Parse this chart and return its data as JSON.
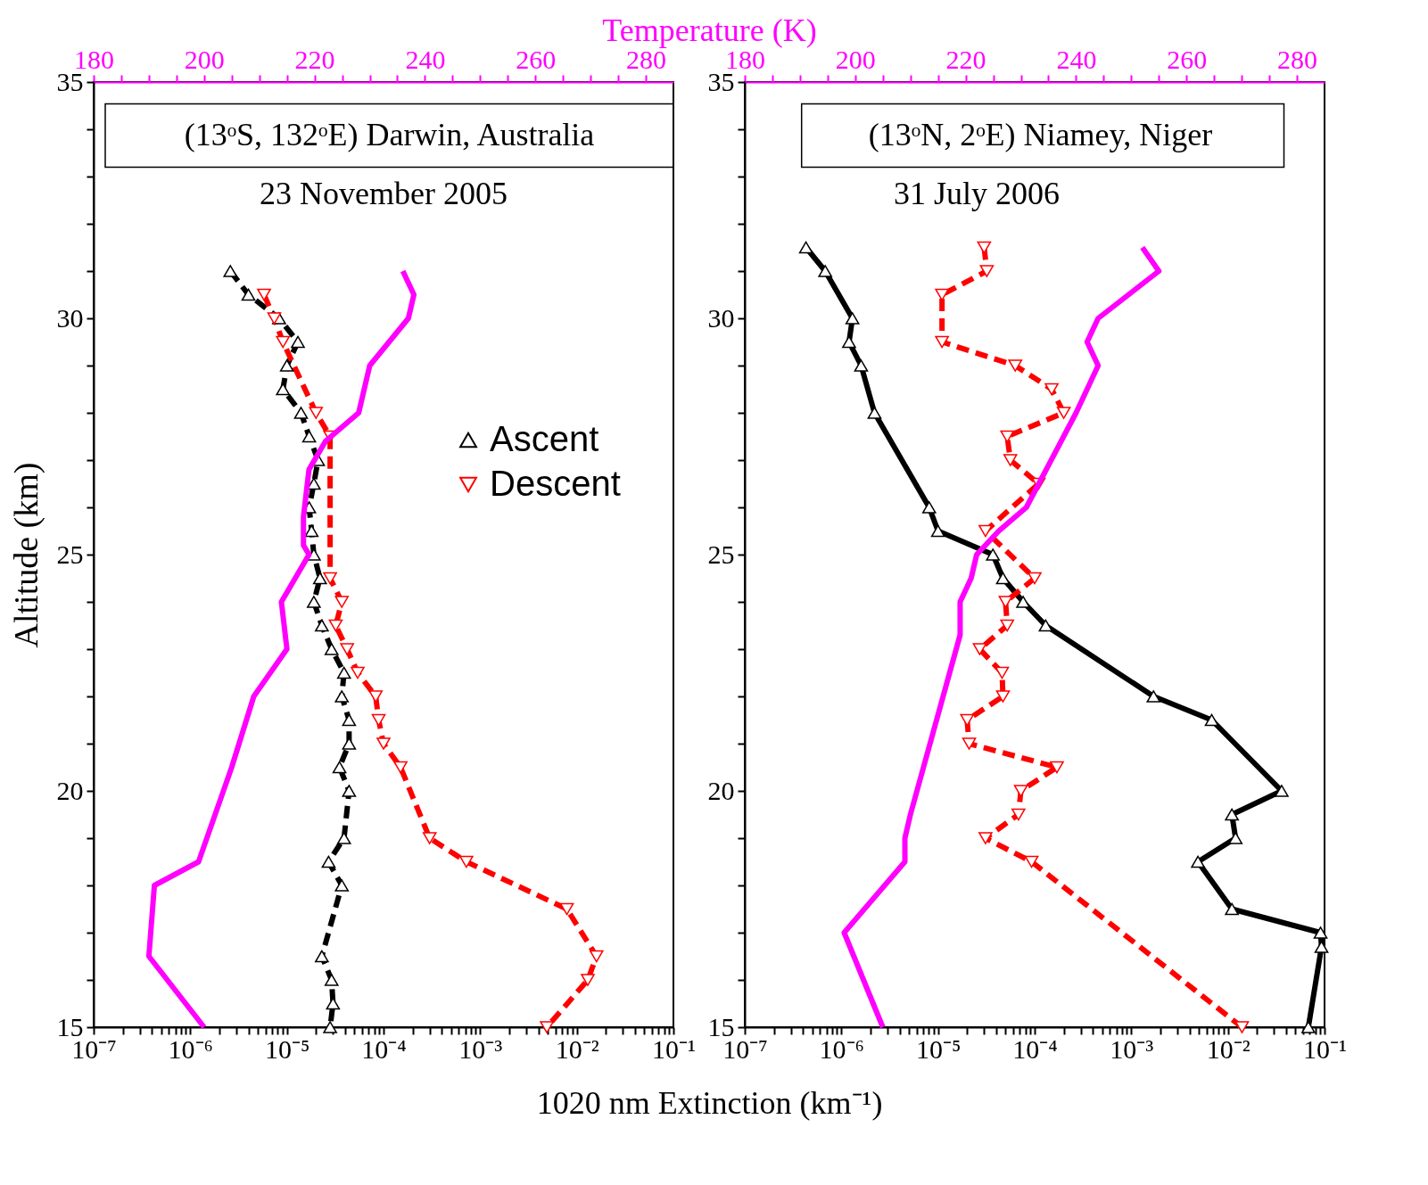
{
  "chart_data": [
    {
      "type": "line",
      "xlabel": "1020 nm Extinction (km⁻¹)",
      "x2label": "Temperature (K)",
      "ylabel": "Altitude (km)",
      "annotations": [
        "(13ᵒS, 132ᵒE) Darwin, Australia",
        "23 November 2005"
      ],
      "log": "x",
      "legend": "right",
      "xlim": [
        1e-07,
        0.1
      ],
      "xticks": [
        {
          "value": 1e-07,
          "label": "10⁻⁷"
        },
        {
          "value": 2e-07,
          "label": null
        },
        {
          "value": 3e-07,
          "label": null
        },
        {
          "value": 4e-07,
          "label": null
        },
        {
          "value": 5e-07,
          "label": null
        },
        {
          "value": 6e-07,
          "label": null
        },
        {
          "value": 7e-07,
          "label": null
        },
        {
          "value": 8e-07,
          "label": null
        },
        {
          "value": 9e-07,
          "label": null
        },
        {
          "value": 1e-06,
          "label": "10⁻⁶"
        },
        {
          "value": 2e-06,
          "label": null
        },
        {
          "value": 3e-06,
          "label": null
        },
        {
          "value": 4e-06,
          "label": null
        },
        {
          "value": 5e-06,
          "label": null
        },
        {
          "value": 6e-06,
          "label": null
        },
        {
          "value": 7e-06,
          "label": null
        },
        {
          "value": 8e-06,
          "label": null
        },
        {
          "value": 9e-06,
          "label": null
        },
        {
          "value": 1e-05,
          "label": "10⁻⁵"
        },
        {
          "value": 2e-05,
          "label": null
        },
        {
          "value": 3e-05,
          "label": null
        },
        {
          "value": 4e-05,
          "label": null
        },
        {
          "value": 5e-05,
          "label": null
        },
        {
          "value": 6e-05,
          "label": null
        },
        {
          "value": 7e-05,
          "label": null
        },
        {
          "value": 8e-05,
          "label": null
        },
        {
          "value": 9e-05,
          "label": null
        },
        {
          "value": 0.0001,
          "label": "10⁻⁴"
        },
        {
          "value": 0.0002,
          "label": null
        },
        {
          "value": 0.0003,
          "label": null
        },
        {
          "value": 0.0004,
          "label": null
        },
        {
          "value": 0.0005,
          "label": null
        },
        {
          "value": 0.0006,
          "label": null
        },
        {
          "value": 0.0007,
          "label": null
        },
        {
          "value": 0.0008,
          "label": null
        },
        {
          "value": 0.0009,
          "label": null
        },
        {
          "value": 0.001,
          "label": "10⁻³"
        },
        {
          "value": 0.002,
          "label": null
        },
        {
          "value": 0.003,
          "label": null
        },
        {
          "value": 0.004,
          "label": null
        },
        {
          "value": 0.005,
          "label": null
        },
        {
          "value": 0.006,
          "label": null
        },
        {
          "value": 0.007,
          "label": null
        },
        {
          "value": 0.008,
          "label": null
        },
        {
          "value": 0.009,
          "label": null
        },
        {
          "value": 0.01,
          "label": "10⁻²"
        },
        {
          "value": 0.02,
          "label": null
        },
        {
          "value": 0.03,
          "label": null
        },
        {
          "value": 0.04,
          "label": null
        },
        {
          "value": 0.05,
          "label": null
        },
        {
          "value": 0.06,
          "label": null
        },
        {
          "value": 0.07,
          "label": null
        },
        {
          "value": 0.08,
          "label": null
        },
        {
          "value": 0.09,
          "label": null
        },
        {
          "value": 0.1,
          "label": "10⁻¹"
        }
      ],
      "x2lim": [
        180,
        285
      ],
      "x2ticks": [
        180,
        {
          "value": 185,
          "label": null
        },
        {
          "value": 190,
          "label": null
        },
        {
          "value": 195,
          "label": null
        },
        200,
        {
          "value": 205,
          "label": null
        },
        {
          "value": 210,
          "label": null
        },
        {
          "value": 215,
          "label": null
        },
        220,
        {
          "value": 225,
          "label": null
        },
        {
          "value": 230,
          "label": null
        },
        {
          "value": 235,
          "label": null
        },
        240,
        {
          "value": 245,
          "label": null
        },
        {
          "value": 250,
          "label": null
        },
        {
          "value": 255,
          "label": null
        },
        260,
        {
          "value": 265,
          "label": null
        },
        {
          "value": 270,
          "label": null
        },
        {
          "value": 275,
          "label": null
        },
        280
      ],
      "ylim": [
        15,
        35
      ],
      "yticks": [
        15,
        {
          "value": 16,
          "label": null
        },
        {
          "value": 17,
          "label": null
        },
        {
          "value": 18,
          "label": null
        },
        {
          "value": 19,
          "label": null
        },
        20,
        {
          "value": 21,
          "label": null
        },
        {
          "value": 22,
          "label": null
        },
        {
          "value": 23,
          "label": null
        },
        {
          "value": 24,
          "label": null
        },
        25,
        {
          "value": 26,
          "label": null
        },
        {
          "value": 27,
          "label": null
        },
        {
          "value": 28,
          "label": null
        },
        {
          "value": 29,
          "label": null
        },
        30,
        {
          "value": 31,
          "label": null
        },
        {
          "value": 32,
          "label": null
        },
        {
          "value": 33,
          "label": null
        },
        {
          "value": 34,
          "label": null
        },
        35
      ],
      "series": [
        {
          "name": "Ascent",
          "color": "#000000",
          "marker": "triangle",
          "line_style": "dashed",
          "x": [
            2.6e-06,
            4e-06,
            8.3e-06,
            1.3e-05,
            1e-05,
            9.1e-06,
            1.4e-05,
            1.7e-05,
            2.1e-05,
            1.9e-05,
            1.7e-05,
            1.8e-05,
            1.9e-05,
            2.2e-05,
            1.9e-05,
            2.3e-05,
            2.9e-05,
            3.9e-05,
            3.7e-05,
            4.4e-05,
            4.4e-05,
            3.5e-05,
            4.4e-05,
            3.9e-05,
            2.7e-05,
            3.7e-05,
            2.3e-05,
            2.9e-05,
            3e-05,
            2.8e-05
          ],
          "values": [
            31,
            30.5,
            30,
            29.5,
            29,
            28.5,
            28,
            27.5,
            27,
            26.5,
            26,
            25.5,
            25,
            24.5,
            24,
            23.5,
            23,
            22.5,
            22,
            21.5,
            21,
            20.5,
            20,
            19,
            18.5,
            18,
            16.5,
            16,
            15.5,
            15
          ]
        },
        {
          "name": "Descent",
          "color": "#ff0000",
          "marker": "triangle-down",
          "line_style": "dashed",
          "x": [
            5.8e-06,
            7.4e-06,
            9.1e-06,
            2e-05,
            2.8e-05,
            2.8e-05,
            3.7e-05,
            3.2e-05,
            4.2e-05,
            5.4e-05,
            8.3e-05,
            8.9e-05,
            0.0001,
            0.00015,
            0.0003,
            0.00072,
            0.0079,
            0.016,
            0.013,
            0.0049
          ],
          "values": [
            30.5,
            30,
            29.5,
            28,
            27.5,
            24.5,
            24,
            23.5,
            23,
            22.5,
            22,
            21.5,
            21,
            20.5,
            19,
            18.5,
            17.5,
            16.5,
            16,
            15
          ]
        },
        {
          "color": "#ff00ff",
          "axis": "x2",
          "marker": "none",
          "line_style": "solid",
          "x": [
            236,
            238,
            237,
            230,
            228,
            222,
            219,
            218,
            218,
            219,
            214,
            215,
            209,
            205,
            199,
            191,
            190,
            200
          ],
          "values": [
            31,
            30.5,
            30,
            29,
            28,
            27.4,
            26.8,
            25.8,
            25.2,
            25,
            24,
            23,
            22,
            20.5,
            18.5,
            18,
            16.5,
            15
          ]
        }
      ]
    },
    {
      "type": "line",
      "annotations": [
        "(13ᵒN, 2ᵒE) Niamey, Niger",
        "31 July 2006"
      ],
      "log": "x",
      "legend": "right",
      "xlim": [
        1e-07,
        0.1
      ],
      "xticks": [
        {
          "value": 1e-07,
          "label": "10⁻⁷"
        },
        {
          "value": 2e-07,
          "label": null
        },
        {
          "value": 3e-07,
          "label": null
        },
        {
          "value": 4e-07,
          "label": null
        },
        {
          "value": 5e-07,
          "label": null
        },
        {
          "value": 6e-07,
          "label": null
        },
        {
          "value": 7e-07,
          "label": null
        },
        {
          "value": 8e-07,
          "label": null
        },
        {
          "value": 9e-07,
          "label": null
        },
        {
          "value": 1e-06,
          "label": "10⁻⁶"
        },
        {
          "value": 2e-06,
          "label": null
        },
        {
          "value": 3e-06,
          "label": null
        },
        {
          "value": 4e-06,
          "label": null
        },
        {
          "value": 5e-06,
          "label": null
        },
        {
          "value": 6e-06,
          "label": null
        },
        {
          "value": 7e-06,
          "label": null
        },
        {
          "value": 8e-06,
          "label": null
        },
        {
          "value": 9e-06,
          "label": null
        },
        {
          "value": 1e-05,
          "label": "10⁻⁵"
        },
        {
          "value": 2e-05,
          "label": null
        },
        {
          "value": 3e-05,
          "label": null
        },
        {
          "value": 4e-05,
          "label": null
        },
        {
          "value": 5e-05,
          "label": null
        },
        {
          "value": 6e-05,
          "label": null
        },
        {
          "value": 7e-05,
          "label": null
        },
        {
          "value": 8e-05,
          "label": null
        },
        {
          "value": 9e-05,
          "label": null
        },
        {
          "value": 0.0001,
          "label": "10⁻⁴"
        },
        {
          "value": 0.0002,
          "label": null
        },
        {
          "value": 0.0003,
          "label": null
        },
        {
          "value": 0.0004,
          "label": null
        },
        {
          "value": 0.0005,
          "label": null
        },
        {
          "value": 0.0006,
          "label": null
        },
        {
          "value": 0.0007,
          "label": null
        },
        {
          "value": 0.0008,
          "label": null
        },
        {
          "value": 0.0009,
          "label": null
        },
        {
          "value": 0.001,
          "label": "10⁻³"
        },
        {
          "value": 0.002,
          "label": null
        },
        {
          "value": 0.003,
          "label": null
        },
        {
          "value": 0.004,
          "label": null
        },
        {
          "value": 0.005,
          "label": null
        },
        {
          "value": 0.006,
          "label": null
        },
        {
          "value": 0.007,
          "label": null
        },
        {
          "value": 0.008,
          "label": null
        },
        {
          "value": 0.009,
          "label": null
        },
        {
          "value": 0.01,
          "label": "10⁻²"
        },
        {
          "value": 0.02,
          "label": null
        },
        {
          "value": 0.03,
          "label": null
        },
        {
          "value": 0.04,
          "label": null
        },
        {
          "value": 0.05,
          "label": null
        },
        {
          "value": 0.06,
          "label": null
        },
        {
          "value": 0.07,
          "label": null
        },
        {
          "value": 0.08,
          "label": null
        },
        {
          "value": 0.09,
          "label": null
        },
        {
          "value": 0.1,
          "label": "10⁻¹"
        }
      ],
      "x2lim": [
        180,
        285
      ],
      "x2ticks": [
        180,
        {
          "value": 185,
          "label": null
        },
        {
          "value": 190,
          "label": null
        },
        {
          "value": 195,
          "label": null
        },
        200,
        {
          "value": 205,
          "label": null
        },
        {
          "value": 210,
          "label": null
        },
        {
          "value": 215,
          "label": null
        },
        220,
        {
          "value": 225,
          "label": null
        },
        {
          "value": 230,
          "label": null
        },
        {
          "value": 235,
          "label": null
        },
        240,
        {
          "value": 245,
          "label": null
        },
        {
          "value": 250,
          "label": null
        },
        {
          "value": 255,
          "label": null
        },
        260,
        {
          "value": 265,
          "label": null
        },
        {
          "value": 270,
          "label": null
        },
        {
          "value": 275,
          "label": null
        },
        280
      ],
      "ylim": [
        15,
        35
      ],
      "yticks": [
        15,
        {
          "value": 16,
          "label": null
        },
        {
          "value": 17,
          "label": null
        },
        {
          "value": 18,
          "label": null
        },
        {
          "value": 19,
          "label": null
        },
        20,
        {
          "value": 21,
          "label": null
        },
        {
          "value": 22,
          "label": null
        },
        {
          "value": 23,
          "label": null
        },
        {
          "value": 24,
          "label": null
        },
        25,
        {
          "value": 26,
          "label": null
        },
        {
          "value": 27,
          "label": null
        },
        {
          "value": 28,
          "label": null
        },
        {
          "value": 29,
          "label": null
        },
        30,
        {
          "value": 31,
          "label": null
        },
        {
          "value": 32,
          "label": null
        },
        {
          "value": 33,
          "label": null
        },
        {
          "value": 34,
          "label": null
        },
        35
      ],
      "series": [
        {
          "name": "Ascent",
          "color": "#000000",
          "marker": "triangle",
          "line_style": "solid",
          "x": [
            4.3e-07,
            6.8e-07,
            1.3e-06,
            1.2e-06,
            1.6e-06,
            2.2e-06,
            8.1e-06,
            1e-05,
            3.7e-05,
            4.7e-05,
            7.6e-05,
            0.00013,
            0.0017,
            0.0068,
            0.036,
            0.011,
            0.012,
            0.0049,
            0.011,
            0.091,
            0.093,
            0.068
          ],
          "values": [
            31.5,
            31,
            30,
            29.5,
            29,
            28,
            26,
            25.5,
            25,
            24.5,
            24,
            23.5,
            22,
            21.5,
            20,
            19.5,
            19,
            18.5,
            17.5,
            17,
            16.7,
            15
          ]
        },
        {
          "name": "Descent",
          "color": "#ff0000",
          "marker": "triangle-down",
          "line_style": "dashed",
          "x": [
            3e-05,
            3.2e-05,
            1.1e-05,
            1.1e-05,
            6.3e-05,
            0.00015,
            0.0002,
            5.2e-05,
            5.6e-05,
            0.00011,
            3.1e-05,
            0.0001,
            5e-05,
            5.2e-05,
            2.7e-05,
            4.6e-05,
            4.7e-05,
            2e-05,
            2.1e-05,
            0.00017,
            7.2e-05,
            6.8e-05,
            3.1e-05,
            9.3e-05,
            0.014
          ],
          "values": [
            31.5,
            31,
            30.5,
            29.5,
            29,
            28.5,
            28,
            27.5,
            27,
            26.5,
            25.5,
            24.5,
            24,
            23.5,
            23,
            22.5,
            22,
            21.5,
            21,
            20.5,
            20,
            19.5,
            19,
            18.5,
            15
          ]
        },
        {
          "color": "#ff00ff",
          "axis": "x2",
          "marker": "none",
          "line_style": "solid",
          "x": [
            252,
            255,
            244,
            242,
            244,
            240,
            231,
            226,
            222,
            221,
            219,
            219,
            210,
            209,
            209,
            198,
            205
          ],
          "values": [
            31.5,
            31,
            30,
            29.5,
            29,
            28,
            26,
            25.5,
            25,
            24.5,
            24,
            23.3,
            19.5,
            19,
            18.5,
            17,
            15
          ]
        }
      ]
    }
  ]
}
